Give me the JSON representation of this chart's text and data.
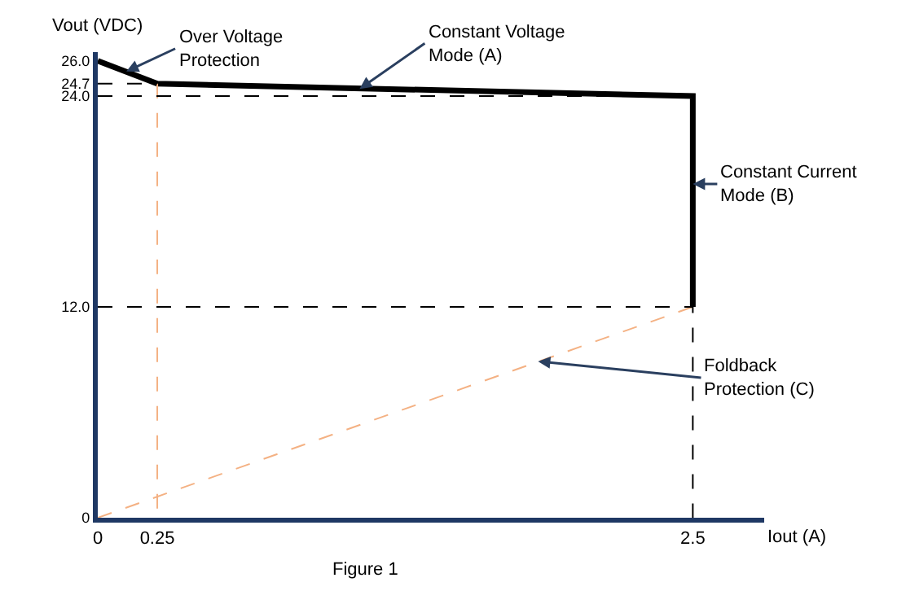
{
  "chart_data": {
    "type": "line",
    "xlabel": "Iout (A)",
    "ylabel": "Vout (VDC)",
    "xlim": [
      0,
      2.8
    ],
    "xticks": [
      0,
      0.25,
      2.5
    ],
    "ylim": [
      0,
      26.5
    ],
    "yticks": [
      {
        "value": 0,
        "label": "0"
      },
      {
        "value": 12,
        "label": "12.0"
      },
      {
        "value": 24,
        "label": "24.0"
      },
      {
        "value": 24.7,
        "label": "24.7"
      },
      {
        "value": 26,
        "label": "26.0"
      }
    ],
    "series": [
      {
        "color": "#000000",
        "x": [
          0,
          0.25,
          2.5,
          2.5
        ],
        "values": [
          26,
          24.7,
          24,
          12
        ],
        "line_style": "solid"
      },
      {
        "color": "#f4b183",
        "x": [
          0,
          2.5,
          null,
          0.25,
          0.25
        ],
        "values": [
          0,
          12,
          null,
          24.7,
          0
        ],
        "line_style": "dashed"
      },
      {
        "color": "#000000",
        "x": [
          0,
          0.25,
          null,
          0,
          2.5,
          null,
          0,
          2.5,
          2.5
        ],
        "values": [
          24.7,
          24.7,
          null,
          24,
          24,
          null,
          12,
          12,
          0
        ],
        "line_style": "dashed"
      }
    ],
    "annotations": [
      {
        "text": "Over Voltage\nProtection",
        "x": 0.12,
        "y": 25.4
      },
      {
        "text": "Constant Voltage\nMode (A)",
        "x": 1.1,
        "y": 24.4
      },
      {
        "text": "Constant Current\nMode (B)",
        "x": 2.5,
        "y": 19
      },
      {
        "text": "Foldback\nProtection (C)",
        "x": 1.85,
        "y": 8.9
      },
      "Figure 1"
    ],
    "marker": "none"
  }
}
